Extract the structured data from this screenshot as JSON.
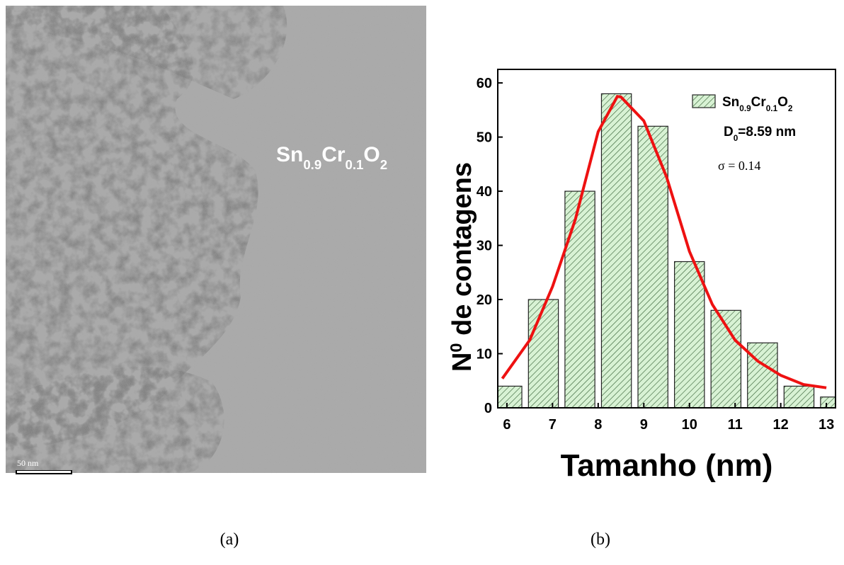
{
  "image": {
    "label": [
      {
        "text": "Sn"
      },
      {
        "text": "0.9",
        "sub": true
      },
      {
        "text": "Cr"
      },
      {
        "text": "0.1",
        "sub": true
      },
      {
        "text": "O"
      },
      {
        "text": "2",
        "sub": true
      }
    ],
    "scale_bar": "50 nm",
    "caption": "(a)"
  },
  "chart_data": {
    "type": "histogram",
    "caption": "(b)",
    "xlabel": "Tamanho (nm)",
    "ylabel": [
      {
        "text": "N"
      },
      {
        "text": "0",
        "sup": true
      },
      {
        "text": " de contagens"
      }
    ],
    "bins": [
      5.6,
      6.4,
      7.2,
      8.0,
      8.8,
      9.6,
      10.4,
      11.2,
      12.0,
      12.8,
      13.6
    ],
    "series": [
      {
        "name": [
          {
            "text": "Sn"
          },
          {
            "text": "0.9",
            "sub": true
          },
          {
            "text": "Cr"
          },
          {
            "text": "0.1",
            "sub": true
          },
          {
            "text": "O"
          },
          {
            "text": "2",
            "sub": true
          }
        ],
        "color": "#d8f2d4",
        "values": [
          4,
          20,
          40,
          58,
          52,
          27,
          18,
          12,
          4,
          2
        ]
      }
    ],
    "fit": {
      "color": "#ee1111",
      "x": [
        5.9,
        6.5,
        7,
        7.5,
        8,
        8.42,
        8.5,
        9,
        9.5,
        10,
        10.5,
        11,
        11.5,
        12,
        12.5,
        13
      ],
      "y": [
        5.4,
        12.5,
        22.4,
        34.8,
        51,
        57.5,
        57.4,
        53,
        42.6,
        28.9,
        19.1,
        12.5,
        8.6,
        6,
        4.3,
        3.7
      ]
    },
    "annotations": [
      [
        {
          "text": "D"
        },
        {
          "text": "0",
          "sub": true
        },
        {
          "text": "=8.59 nm"
        }
      ],
      [
        {
          "text": "σ = 0.14"
        }
      ]
    ],
    "xlim": [
      5.8,
      13.2
    ],
    "ylim": [
      0,
      62.5
    ],
    "xticks": [
      6,
      7,
      8,
      9,
      10,
      11,
      12,
      13
    ],
    "yticks": [
      0,
      10,
      20,
      30,
      40,
      50,
      60
    ]
  }
}
